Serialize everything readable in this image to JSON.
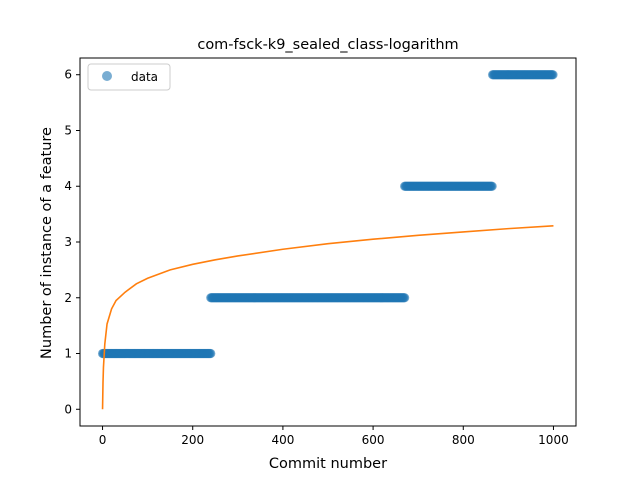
{
  "chart_data": {
    "type": "scatter",
    "title": "com-fsck-k9_sealed_class-logarithm",
    "xlabel": "Commit number",
    "ylabel": "Number of instance of a feature",
    "xlim": [
      -50,
      1050
    ],
    "ylim": [
      -0.3,
      6.3
    ],
    "xticks": [
      0,
      200,
      400,
      600,
      800,
      1000
    ],
    "yticks": [
      0,
      1,
      2,
      3,
      4,
      5,
      6
    ],
    "grid": false,
    "legend": {
      "placement": "top-left",
      "entries": [
        "data"
      ]
    },
    "colors": {
      "data": "#1f77b4",
      "fit": "#ff7f0e"
    },
    "series": [
      {
        "name": "data",
        "kind": "points",
        "segments": [
          {
            "x_start": 0,
            "x_end": 240,
            "y": 1
          },
          {
            "x_start": 240,
            "x_end": 670,
            "y": 2
          },
          {
            "x_start": 670,
            "x_end": 865,
            "y": 4
          },
          {
            "x_start": 865,
            "x_end": 1000,
            "y": 6
          }
        ]
      },
      {
        "kind": "line",
        "x": [
          0,
          1,
          2,
          5,
          10,
          20,
          30,
          50,
          75,
          100,
          150,
          200,
          250,
          300,
          400,
          500,
          600,
          700,
          800,
          900,
          1000
        ],
        "y": [
          0,
          0.48,
          0.75,
          1.17,
          1.53,
          1.8,
          1.95,
          2.1,
          2.25,
          2.35,
          2.5,
          2.6,
          2.68,
          2.75,
          2.87,
          2.97,
          3.05,
          3.12,
          3.18,
          3.24,
          3.29
        ]
      }
    ]
  }
}
